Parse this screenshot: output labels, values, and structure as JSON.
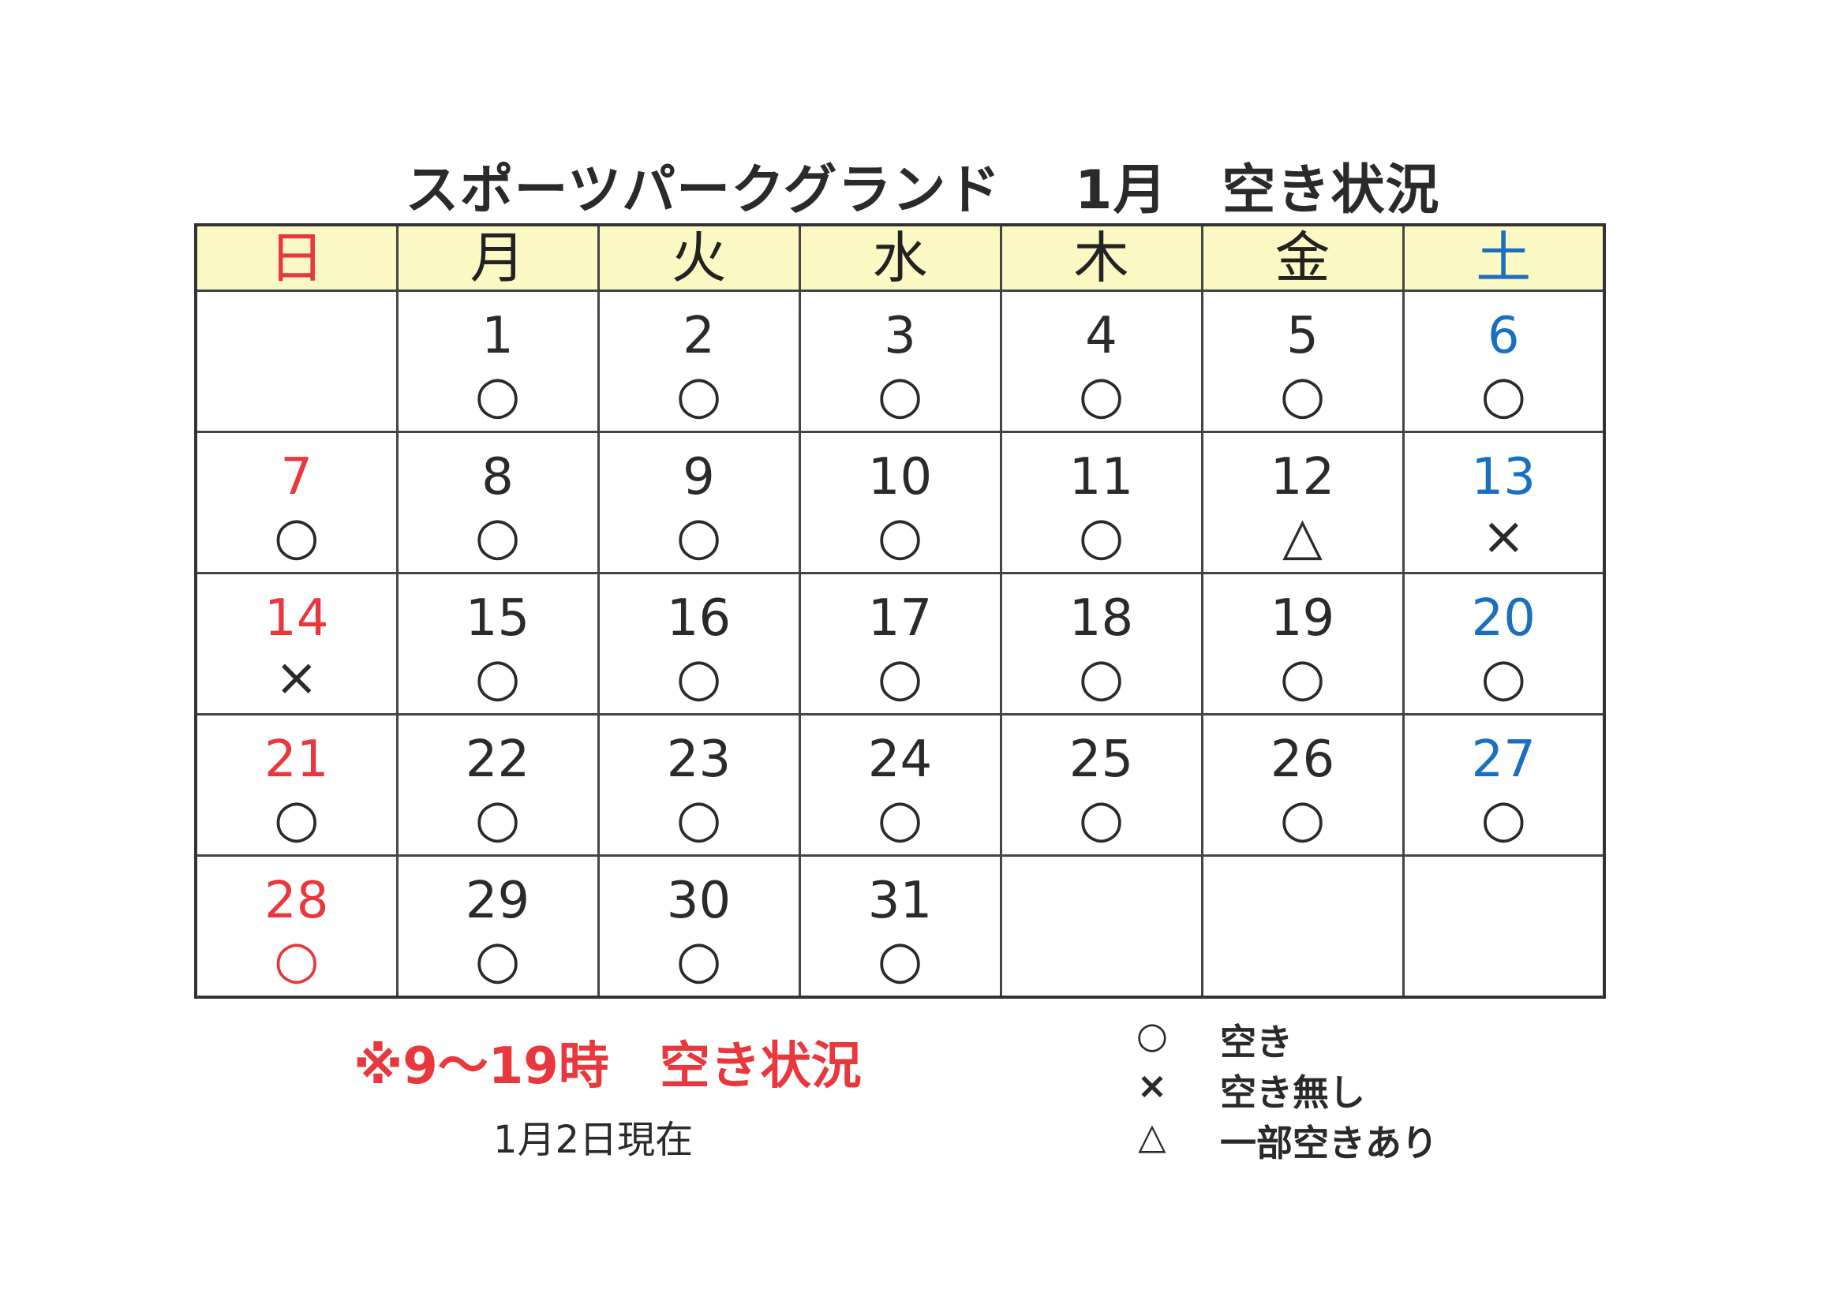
{
  "title": "スポーツパークグランド　 1月　空き状況",
  "weekdays": [
    "日",
    "月",
    "火",
    "水",
    "木",
    "金",
    "土"
  ],
  "weeks": [
    [
      {
        "day": "",
        "mark": ""
      },
      {
        "day": "1",
        "mark": "○"
      },
      {
        "day": "2",
        "mark": "○"
      },
      {
        "day": "3",
        "mark": "○"
      },
      {
        "day": "4",
        "mark": "○"
      },
      {
        "day": "5",
        "mark": "○"
      },
      {
        "day": "6",
        "mark": "○"
      }
    ],
    [
      {
        "day": "7",
        "mark": "○"
      },
      {
        "day": "8",
        "mark": "○"
      },
      {
        "day": "9",
        "mark": "○"
      },
      {
        "day": "10",
        "mark": "○"
      },
      {
        "day": "11",
        "mark": "○"
      },
      {
        "day": "12",
        "mark": "△"
      },
      {
        "day": "13",
        "mark": "×"
      }
    ],
    [
      {
        "day": "14",
        "mark": "×"
      },
      {
        "day": "15",
        "mark": "○"
      },
      {
        "day": "16",
        "mark": "○"
      },
      {
        "day": "17",
        "mark": "○"
      },
      {
        "day": "18",
        "mark": "○"
      },
      {
        "day": "19",
        "mark": "○"
      },
      {
        "day": "20",
        "mark": "○"
      }
    ],
    [
      {
        "day": "21",
        "mark": "○"
      },
      {
        "day": "22",
        "mark": "○"
      },
      {
        "day": "23",
        "mark": "○"
      },
      {
        "day": "24",
        "mark": "○"
      },
      {
        "day": "25",
        "mark": "○"
      },
      {
        "day": "26",
        "mark": "○"
      },
      {
        "day": "27",
        "mark": "○"
      }
    ],
    [
      {
        "day": "28",
        "mark": "○"
      },
      {
        "day": "29",
        "mark": "○"
      },
      {
        "day": "30",
        "mark": "○"
      },
      {
        "day": "31",
        "mark": "○"
      },
      {
        "day": "",
        "mark": ""
      },
      {
        "day": "",
        "mark": ""
      },
      {
        "day": "",
        "mark": ""
      }
    ]
  ],
  "note": "※9～19時　空き状況",
  "as_of": "1月2日現在",
  "legend": [
    {
      "symbol": "○",
      "text": "空き"
    },
    {
      "symbol": "×",
      "text": "空き無し"
    },
    {
      "symbol": "△",
      "text": "一部空きあり"
    }
  ],
  "colors": {
    "sunday": "#e8383d",
    "saturday": "#1a6fc0",
    "header_bg": "#fbf8c4"
  }
}
